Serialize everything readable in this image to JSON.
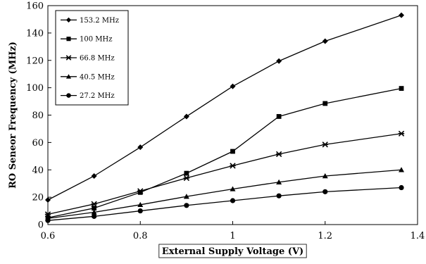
{
  "chart_data": {
    "type": "line",
    "title": "",
    "xlabel": "External Supply Voltage (V)",
    "ylabel": "RO Seneor Frequency  (MHz)",
    "xlim": [
      0.6,
      1.4
    ],
    "ylim": [
      0,
      160
    ],
    "xticks": [
      "0.6",
      "0.8",
      "1",
      "1.2",
      "1.4"
    ],
    "yticks": [
      "0",
      "20",
      "40",
      "60",
      "80",
      "100",
      "120",
      "140",
      "160"
    ],
    "grid": false,
    "legend_position": "top-left",
    "series": [
      {
        "name": "153.2 MHz",
        "marker": "diamond",
        "x": [
          0.6,
          0.7,
          0.8,
          0.9,
          1.0,
          1.1,
          1.2,
          1.365
        ],
        "y": [
          18,
          35.5,
          56.5,
          79,
          101,
          119.5,
          134,
          153
        ]
      },
      {
        "name": "100 MHz",
        "marker": "square",
        "x": [
          0.6,
          0.7,
          0.8,
          0.9,
          1.0,
          1.1,
          1.2,
          1.365
        ],
        "y": [
          5,
          12,
          23.5,
          37.5,
          53.5,
          79,
          88.5,
          99.5
        ]
      },
      {
        "name": "66.8 MHz",
        "marker": "asterisk",
        "x": [
          0.6,
          0.7,
          0.8,
          0.9,
          1.0,
          1.1,
          1.2,
          1.365
        ],
        "y": [
          7.5,
          15,
          24.5,
          34,
          43,
          51.5,
          58.5,
          66.5
        ]
      },
      {
        "name": "40.5 MHz",
        "marker": "triangle",
        "x": [
          0.6,
          0.7,
          0.8,
          0.9,
          1.0,
          1.1,
          1.2,
          1.365
        ],
        "y": [
          4.5,
          9,
          14.5,
          20.5,
          26,
          31,
          35.5,
          40
        ]
      },
      {
        "name": "27.2 MHz",
        "marker": "circle",
        "x": [
          0.6,
          0.7,
          0.8,
          0.9,
          1.0,
          1.1,
          1.2,
          1.365
        ],
        "y": [
          3,
          6,
          10,
          14,
          17.5,
          21,
          24,
          27
        ]
      }
    ]
  }
}
